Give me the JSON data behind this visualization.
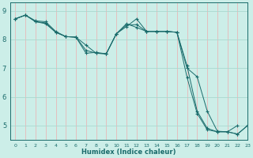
{
  "xlabel": "Humidex (Indice chaleur)",
  "bg_color": "#cceee8",
  "grid_color_h": "#aad8d0",
  "grid_color_v": "#e8b8b8",
  "line_color": "#1a6b6b",
  "xlim": [
    -0.5,
    23
  ],
  "ylim": [
    4.5,
    9.3
  ],
  "yticks": [
    5,
    6,
    7,
    8,
    9
  ],
  "xticks": [
    0,
    1,
    2,
    3,
    4,
    5,
    6,
    7,
    8,
    9,
    10,
    11,
    12,
    13,
    14,
    15,
    16,
    17,
    18,
    19,
    20,
    21,
    22,
    23
  ],
  "series": [
    [
      8.72,
      8.85,
      8.65,
      8.62,
      8.28,
      8.1,
      8.08,
      7.62,
      7.52,
      7.5,
      8.2,
      8.45,
      8.72,
      8.28,
      8.28,
      8.28,
      8.25,
      7.0,
      6.7,
      5.5,
      4.8,
      4.78,
      5.0,
      null
    ],
    [
      8.72,
      8.85,
      8.62,
      8.58,
      8.25,
      8.1,
      8.08,
      7.8,
      7.52,
      7.5,
      8.2,
      8.55,
      8.42,
      8.28,
      8.28,
      8.28,
      8.25,
      7.08,
      5.5,
      4.9,
      4.78,
      4.78,
      4.7,
      5.0
    ],
    [
      8.72,
      8.85,
      8.62,
      8.55,
      8.25,
      8.1,
      8.08,
      7.52,
      7.55,
      7.5,
      8.2,
      8.5,
      8.52,
      8.28,
      8.28,
      8.28,
      8.25,
      6.68,
      5.42,
      4.85,
      4.78,
      4.78,
      4.7,
      5.0
    ]
  ]
}
